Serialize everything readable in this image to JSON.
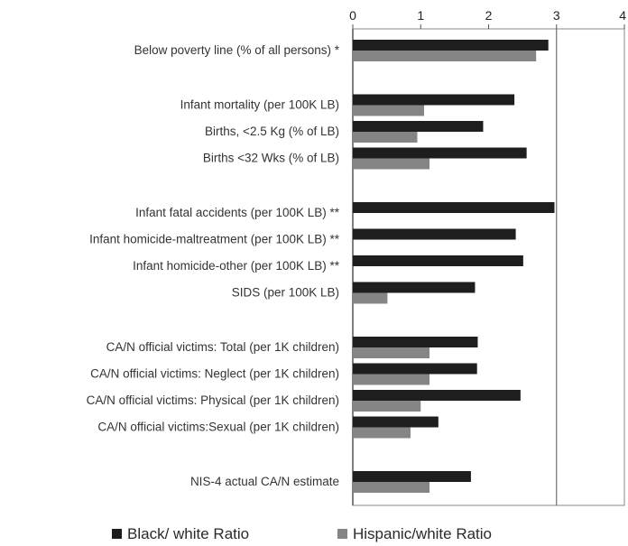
{
  "chart_data": {
    "type": "bar",
    "orientation": "horizontal",
    "title": "",
    "xlabel": "",
    "ylabel": "",
    "xlim": [
      0,
      4
    ],
    "xticks": [
      0,
      1,
      2,
      3,
      4
    ],
    "x_axis_position": "top",
    "reference_line": 3,
    "grid": false,
    "legend_position": "bottom",
    "categories": [
      "Below poverty line (% of all persons) *",
      "Infant mortality  (per 100K LB)",
      "Births, <2.5 Kg (% of LB)",
      "Births <32 Wks (% of LB)",
      "Infant fatal accidents (per 100K LB) **",
      "Infant homicide-maltreatment (per 100K LB) **",
      "Infant homicide-other (per 100K LB) **",
      "SIDS (per 100K LB)",
      "CA/N official victims: Total (per 1K children)",
      "CA/N official victims: Neglect (per 1K children)",
      "CA/N official victims: Physical (per 1K children)",
      "CA/N official victims:Sexual (per 1K children)",
      "NIS-4 actual CA/N estimate"
    ],
    "groups": [
      1,
      2,
      2,
      2,
      3,
      3,
      3,
      3,
      4,
      4,
      4,
      4,
      5
    ],
    "series": [
      {
        "name": "Black/ white Ratio",
        "color": "#1e1e1e",
        "values": [
          2.88,
          2.38,
          1.92,
          2.56,
          2.97,
          2.4,
          2.51,
          1.8,
          1.84,
          1.83,
          2.47,
          1.26,
          1.74
        ]
      },
      {
        "name": "Hispanic/white Ratio",
        "color": "#858585",
        "values": [
          2.7,
          1.05,
          0.95,
          1.13,
          null,
          null,
          null,
          0.51,
          1.13,
          1.13,
          1.0,
          0.85,
          1.13
        ]
      }
    ]
  }
}
